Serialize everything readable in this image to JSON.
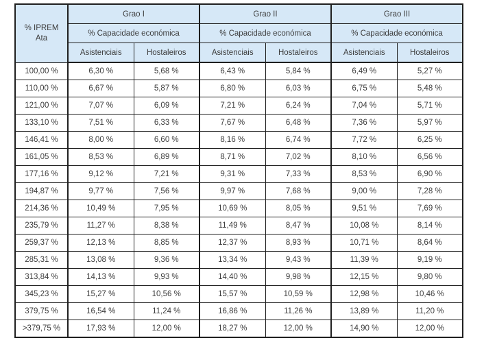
{
  "table": {
    "corner_header": {
      "line1": "% IPREM",
      "line2": "Ata"
    },
    "groups": [
      {
        "label": "Grao I",
        "subheader": "% Capacidade económica"
      },
      {
        "label": "Grao II",
        "subheader": "% Capacidade económica"
      },
      {
        "label": "Grao III",
        "subheader": "% Capacidade económica"
      }
    ],
    "column_headers": [
      "Asistenciais",
      "Hostaleiros"
    ],
    "rows": [
      {
        "iprem": "100,00 %",
        "values": [
          "6,30 %",
          "5,68 %",
          "6,43 %",
          "5,84 %",
          "6,49 %",
          "5,27 %"
        ]
      },
      {
        "iprem": "110,00 %",
        "values": [
          "6,67 %",
          "5,87 %",
          "6,80 %",
          "6,03 %",
          "6,75 %",
          "5,48 %"
        ]
      },
      {
        "iprem": "121,00 %",
        "values": [
          "7,07 %",
          "6,09 %",
          "7,21 %",
          "6,24 %",
          "7,04 %",
          "5,71 %"
        ]
      },
      {
        "iprem": "133,10 %",
        "values": [
          "7,51 %",
          "6,33 %",
          "7,67 %",
          "6,48 %",
          "7,36 %",
          "5,97 %"
        ]
      },
      {
        "iprem": "146,41 %",
        "values": [
          "8,00 %",
          "6,60 %",
          "8,16 %",
          "6,74 %",
          "7,72 %",
          "6,25 %"
        ]
      },
      {
        "iprem": "161,05 %",
        "values": [
          "8,53 %",
          "6,89 %",
          "8,71 %",
          "7,02 %",
          "8,10 %",
          "6,56 %"
        ]
      },
      {
        "iprem": "177,16 %",
        "values": [
          "9,12 %",
          "7,21 %",
          "9,31 %",
          "7,33 %",
          "8,53 %",
          "6,90 %"
        ]
      },
      {
        "iprem": "194,87 %",
        "values": [
          "9,77 %",
          "7,56 %",
          "9,97 %",
          "7,68 %",
          "9,00 %",
          "7,28 %"
        ]
      },
      {
        "iprem": "214,36 %",
        "values": [
          "10,49 %",
          "7,95 %",
          "10,69 %",
          "8,05 %",
          "9,51 %",
          "7,69 %"
        ]
      },
      {
        "iprem": "235,79 %",
        "values": [
          "11,27 %",
          "8,38 %",
          "11,49 %",
          "8,47 %",
          "10,08 %",
          "8,14 %"
        ]
      },
      {
        "iprem": "259,37 %",
        "values": [
          "12,13 %",
          "8,85 %",
          "12,37 %",
          "8,93 %",
          "10,71 %",
          "8,64 %"
        ]
      },
      {
        "iprem": "285,31 %",
        "values": [
          "13,08 %",
          "9,36 %",
          "13,34 %",
          "9,43 %",
          "11,39 %",
          "9,19 %"
        ]
      },
      {
        "iprem": "313,84 %",
        "values": [
          "14,13 %",
          "9,93 %",
          "14,40 %",
          "9,98 %",
          "12,15 %",
          "9,80 %"
        ]
      },
      {
        "iprem": "345,23 %",
        "values": [
          "15,27 %",
          "10,56 %",
          "15,57 %",
          "10,59 %",
          "12,98 %",
          "10,46 %"
        ]
      },
      {
        "iprem": "379,75 %",
        "values": [
          "16,54 %",
          "11,24 %",
          "16,86 %",
          "11,26 %",
          "13,89 %",
          "11,20 %"
        ]
      },
      {
        "iprem": ">379,75 %",
        "values": [
          "17,93 %",
          "12,00 %",
          "18,27 %",
          "12,00 %",
          "14,90 %",
          "12,00 %"
        ]
      }
    ]
  },
  "colors": {
    "header_bg": "#d6e8f7",
    "border": "#1f1f1f",
    "text": "#3d3d3d",
    "page_bg": "#ffffff"
  }
}
